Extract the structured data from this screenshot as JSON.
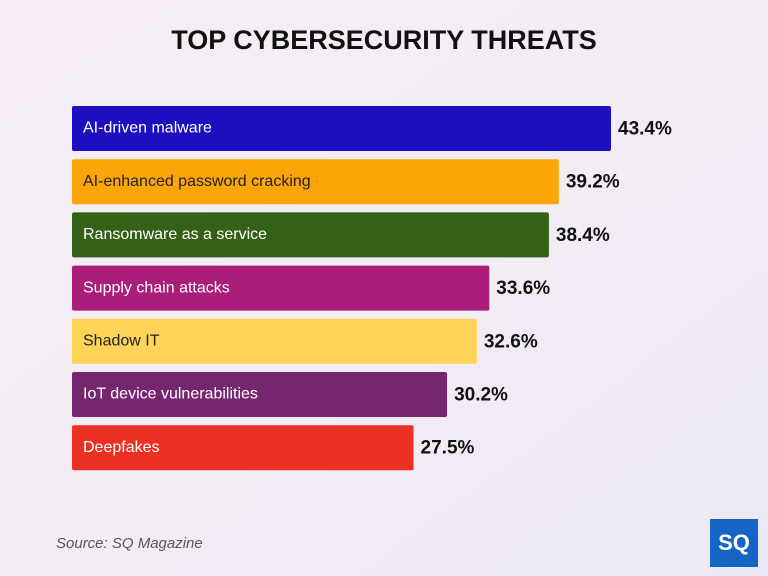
{
  "chart_data": {
    "type": "bar",
    "orientation": "horizontal",
    "title": "TOP CYBERSECURITY THREATS",
    "categories": [
      "AI-driven malware",
      "AI-enhanced password cracking",
      "Ransomware as a service",
      "Supply chain attacks",
      "Shadow IT",
      "IoT device vulnerabilities",
      "Deepfakes"
    ],
    "values": [
      43.4,
      39.2,
      38.4,
      33.6,
      32.6,
      30.2,
      27.5
    ],
    "value_labels": [
      "43.4%",
      "39.2%",
      "38.4%",
      "33.6%",
      "32.6%",
      "30.2%",
      "27.5%"
    ],
    "colors": [
      "#1d0fbf",
      "#fba506",
      "#356117",
      "#ab1d7a",
      "#fdd458",
      "#76266f",
      "#ea3124"
    ],
    "source": "Source: SQ Magazine",
    "logo": "SQ"
  }
}
